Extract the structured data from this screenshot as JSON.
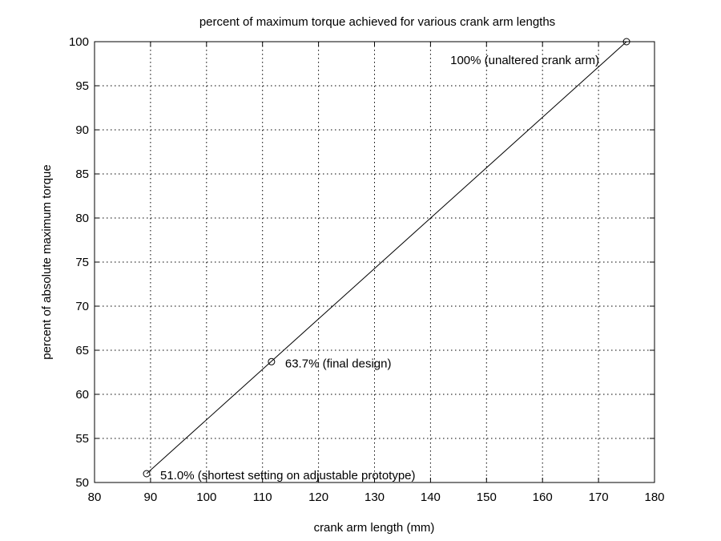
{
  "chart_data": {
    "type": "line",
    "title": "percent of maximum torque achieved for various crank arm lengths",
    "xlabel": "crank arm length (mm)",
    "ylabel": "percent of absolute maximum torque",
    "xlim": [
      80,
      180
    ],
    "ylim": [
      50,
      100
    ],
    "xticks": [
      80,
      90,
      100,
      110,
      120,
      130,
      140,
      150,
      160,
      170,
      180
    ],
    "yticks": [
      50,
      55,
      60,
      65,
      70,
      75,
      80,
      85,
      90,
      95,
      100
    ],
    "grid": true,
    "grid_style": "dotted",
    "line_color": "#000000",
    "series": [
      {
        "x": [
          89.3,
          175
        ],
        "y": [
          51.0,
          100
        ]
      }
    ],
    "markers": [
      {
        "x": 89.3,
        "y": 51.0,
        "label": "51.0%  (shortest setting on adjustable prototype)"
      },
      {
        "x": 111.6,
        "y": 63.7,
        "label": "63.7%  (final design)"
      },
      {
        "x": 175,
        "y": 100,
        "label": "100%  (unaltered crank arm)"
      }
    ]
  }
}
